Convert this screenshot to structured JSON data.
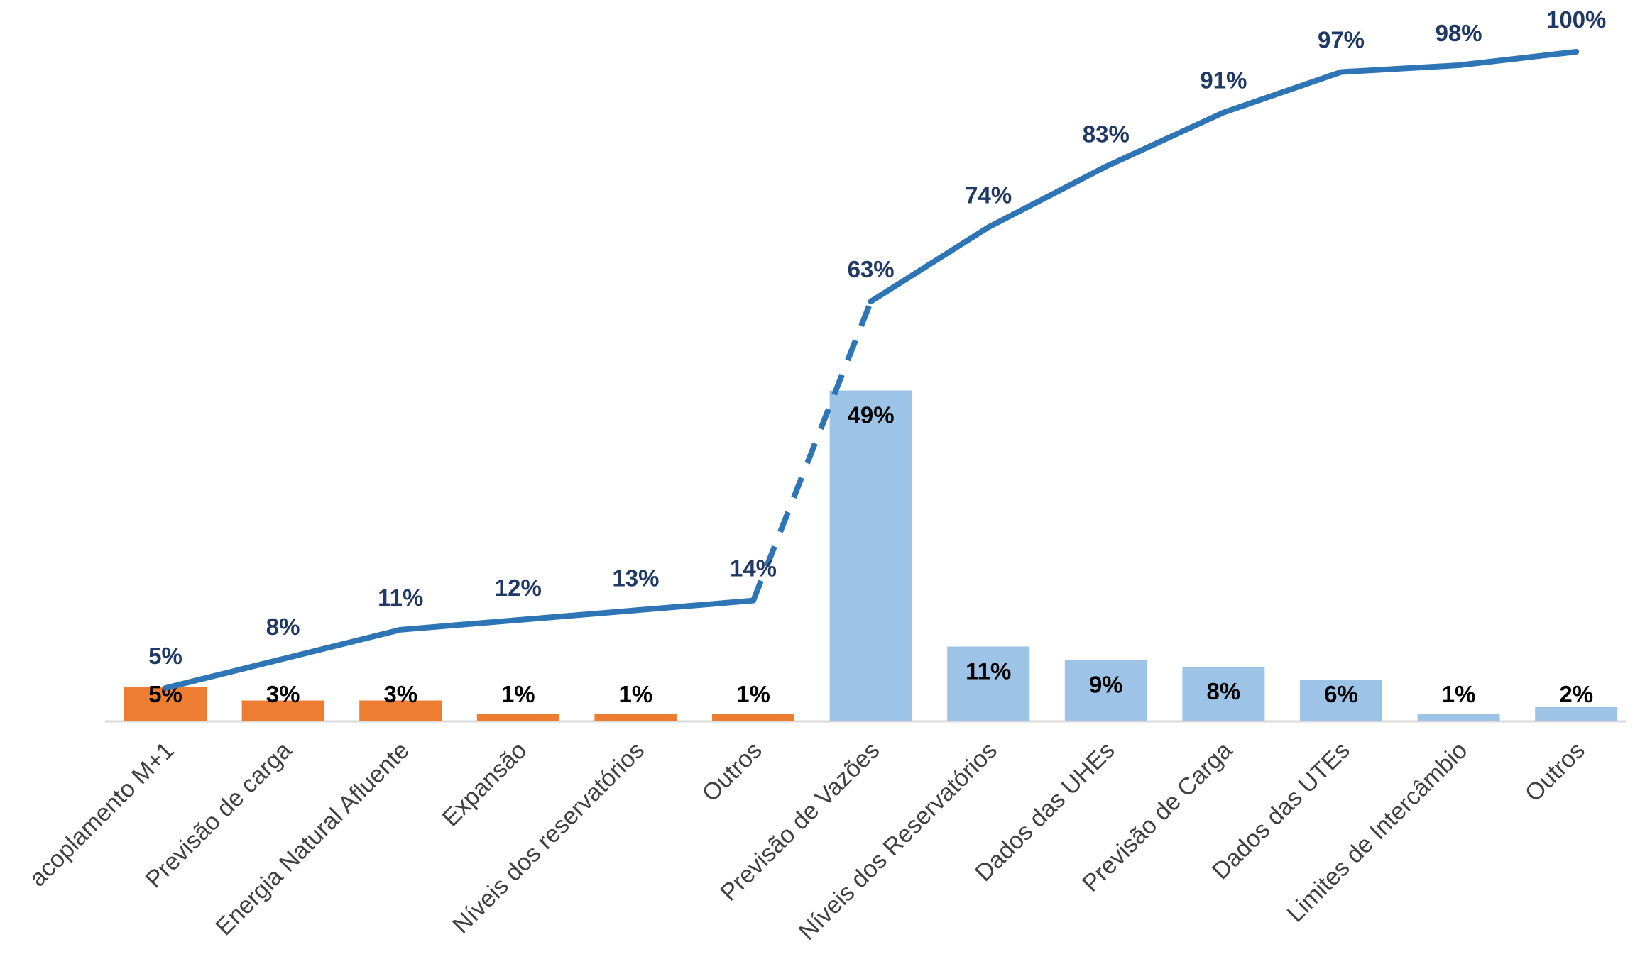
{
  "chart_data": {
    "type": "bar",
    "title": "",
    "xlabel": "",
    "ylabel": "",
    "ylim": [
      0,
      100
    ],
    "grid": false,
    "legend": "none",
    "categories": [
      "acoplamento M+1",
      "Previsão de carga",
      "Energia Natural Afluente",
      "Expansão",
      "Níveis dos reservatórios",
      "Outros",
      "Previsão de Vazões",
      "Níveis dos Reservatórios",
      "Dados das UHEs",
      "Previsão de Carga",
      "Dados das UTEs",
      "Limites de Intercâmbio",
      "Outros"
    ],
    "series": [
      {
        "type": "bar",
        "values": [
          5,
          3,
          3,
          1,
          1,
          1,
          49,
          11,
          9,
          8,
          6,
          1,
          2
        ],
        "labels": [
          "5%",
          "3%",
          "3%",
          "1%",
          "1%",
          "1%",
          "49%",
          "11%",
          "9%",
          "8%",
          "6%",
          "1%",
          "2%"
        ]
      },
      {
        "type": "line",
        "values": [
          5,
          8,
          11,
          12,
          13,
          14,
          63,
          74,
          83,
          91,
          97,
          98,
          100
        ],
        "labels": [
          "5%",
          "8%",
          "11%",
          "12%",
          "13%",
          "14%",
          "63%",
          "74%",
          "83%",
          "91%",
          "97%",
          "98%",
          "100%"
        ]
      }
    ],
    "bar_group_split": 6,
    "dashed_segment": [
      5,
      6
    ],
    "colors": {
      "group1_bar": "#ed7d31",
      "group2_bar": "#9dc3e6",
      "cumulative_line": "#2e75b6",
      "cumulative_label": "#1f3864",
      "axis": "#d9d9d9",
      "category_text": "#404040"
    }
  }
}
